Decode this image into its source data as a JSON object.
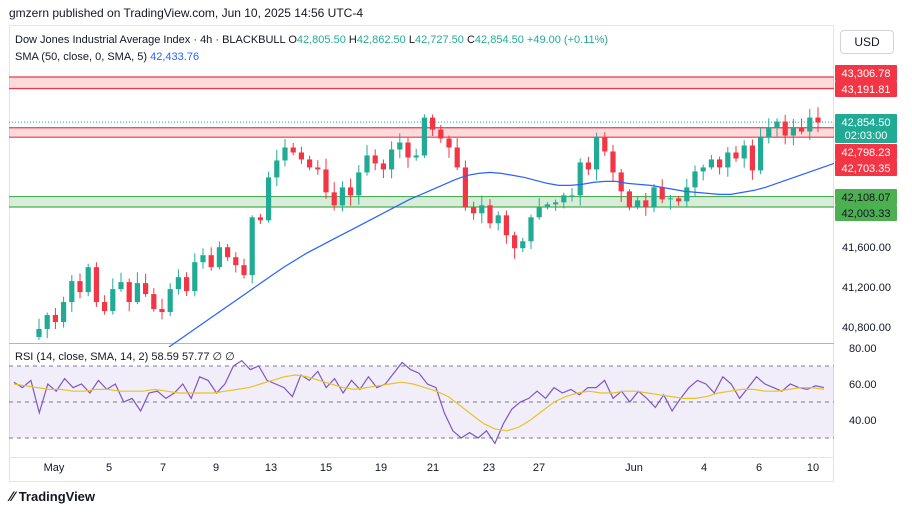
{
  "header": {
    "publisher": "gmzern published on TradingView.com, Jun 10, 2025 14:56 UTC-4"
  },
  "legend": {
    "symbol": "Dow Jones Industrial Average Index · 4h · BLACKBULL",
    "o_label": "O",
    "o_value": "42,805.50",
    "h_label": "H",
    "h_value": "42,862.50",
    "l_label": "L",
    "l_value": "42,727.50",
    "c_label": "C",
    "c_value": "42,854.50",
    "change": "+49.00 (+0.11%)",
    "sma_label": "SMA (50, close, 0, SMA, 5)",
    "sma_value": "42,433.76"
  },
  "rsi_legend": {
    "label": "RSI (14, close, SMA, 14, 2)",
    "rsi_value": "58.59",
    "sma_value": "57.77",
    "extra": "∅ ∅"
  },
  "currency": "USD",
  "logo": {
    "text": "TradingView"
  },
  "colors": {
    "up": "#22ab94",
    "down": "#f23645",
    "sma": "#2962ff",
    "rsi": "#7e57c2",
    "rsi_ma": "#e7c32a",
    "resistance": "#f23645",
    "support": "#4caf50"
  },
  "chart_data": {
    "type": "candlestick",
    "price_axis": {
      "ticks": [
        "41,200.00",
        "41,600.00",
        "40,800.00"
      ],
      "ylim": [
        40500,
        43500
      ]
    },
    "x_ticks": [
      "May",
      "5",
      "7",
      "9",
      "13",
      "15",
      "19",
      "21",
      "23",
      "27",
      "Jun",
      "4",
      "6",
      "10"
    ],
    "price_labels": [
      {
        "text": "43,306.78",
        "value": 43306.78,
        "kind": "resistance"
      },
      {
        "text": "43,191.81",
        "value": 43191.81,
        "kind": "resistance"
      },
      {
        "text": "42,854.50",
        "value": 42854.5,
        "kind": "last"
      },
      {
        "text": "02:03:00",
        "kind": "countdown"
      },
      {
        "text": "42,798.23",
        "value": 42798.23,
        "kind": "resistance"
      },
      {
        "text": "42,703.35",
        "value": 42703.35,
        "kind": "resistance"
      },
      {
        "text": "42,108.07",
        "value": 42108.07,
        "kind": "support"
      },
      {
        "text": "42,003.33",
        "value": 42003.33,
        "kind": "support"
      }
    ],
    "zones": [
      {
        "name": "upper resistance",
        "from": 43191.81,
        "to": 43306.78
      },
      {
        "name": "mid resistance",
        "from": 42703.35,
        "to": 42798.23
      },
      {
        "name": "support",
        "from": 42003.33,
        "to": 42108.07
      }
    ],
    "close_path": [
      40700,
      40780,
      40920,
      40850,
      41050,
      41260,
      41150,
      41400,
      41050,
      40960,
      41180,
      41250,
      41050,
      41240,
      41130,
      40980,
      40950,
      41180,
      41300,
      41160,
      41450,
      41520,
      41400,
      41600,
      41500,
      41420,
      41320,
      41900,
      41870,
      42300,
      42470,
      42600,
      42550,
      42480,
      42400,
      42380,
      42150,
      42020,
      42200,
      42120,
      42350,
      42520,
      42440,
      42380,
      42580,
      42650,
      42500,
      42520,
      42900,
      42780,
      42690,
      42600,
      42400,
      42000,
      41940,
      42020,
      41840,
      41920,
      41720,
      41590,
      41660,
      41900,
      42000,
      42030,
      42050,
      42120,
      42120,
      42450,
      42380,
      42700,
      42560,
      42350,
      42160,
      42000,
      42070,
      42000,
      42200,
      42080,
      42090,
      42060,
      42200,
      42360,
      42400,
      42480,
      42400,
      42550,
      42490,
      42620,
      42370,
      42700,
      42800,
      42860,
      42720,
      42800,
      42760,
      42900,
      42850
    ],
    "sma50": [
      40600,
      40680,
      40760,
      40840,
      40920,
      41000,
      41080,
      41160,
      41240,
      41320,
      41400,
      41470,
      41540,
      41600,
      41660,
      41720,
      41780,
      41840,
      41900,
      41960,
      42020,
      42080,
      42130,
      42180,
      42230,
      42280,
      42320,
      42340,
      42350,
      42340,
      42320,
      42300,
      42270,
      42240,
      42220,
      42220,
      42230,
      42250,
      42260,
      42260,
      42240,
      42230,
      42220,
      42200,
      42180,
      42160,
      42150,
      42140,
      42130,
      42130,
      42150,
      42170,
      42200,
      42240,
      42280,
      42320,
      42360,
      42400,
      42440
    ],
    "rsi": {
      "ylim": [
        20,
        80
      ],
      "ticks": [
        "80.00",
        "60.00",
        "40.00"
      ],
      "bands": [
        70,
        50,
        30
      ],
      "values": [
        61,
        58,
        62,
        44,
        60,
        56,
        63,
        58,
        60,
        55,
        62,
        57,
        60,
        50,
        52,
        45,
        55,
        56,
        52,
        55,
        60,
        52,
        64,
        62,
        55,
        60,
        70,
        73,
        68,
        70,
        62,
        60,
        58,
        53,
        65,
        62,
        67,
        58,
        63,
        55,
        62,
        57,
        64,
        58,
        60,
        66,
        72,
        68,
        66,
        60,
        58,
        44,
        34,
        30,
        33,
        30,
        34,
        27,
        38,
        46,
        50,
        52,
        56,
        52,
        58,
        55,
        57,
        54,
        58,
        58,
        62,
        52,
        56,
        50,
        56,
        52,
        47,
        54,
        45,
        52,
        58,
        62,
        60,
        55,
        64,
        60,
        52,
        58,
        64,
        60,
        58,
        56,
        60,
        58,
        57,
        59,
        58
      ],
      "ma": [
        60,
        59,
        58,
        57,
        57,
        56,
        56,
        57,
        57,
        56,
        56,
        56,
        57,
        56,
        55,
        55,
        55,
        55,
        56,
        57,
        58,
        60,
        62,
        64,
        65,
        64,
        62,
        60,
        58,
        57,
        58,
        59,
        60,
        61,
        60,
        58,
        56,
        53,
        48,
        43,
        38,
        35,
        34,
        36,
        40,
        45,
        50,
        53,
        55,
        56,
        55,
        55,
        56,
        56,
        55,
        54,
        53,
        52,
        52,
        53,
        55,
        56,
        57,
        57,
        56,
        56,
        57,
        58,
        58,
        57
      ]
    }
  }
}
